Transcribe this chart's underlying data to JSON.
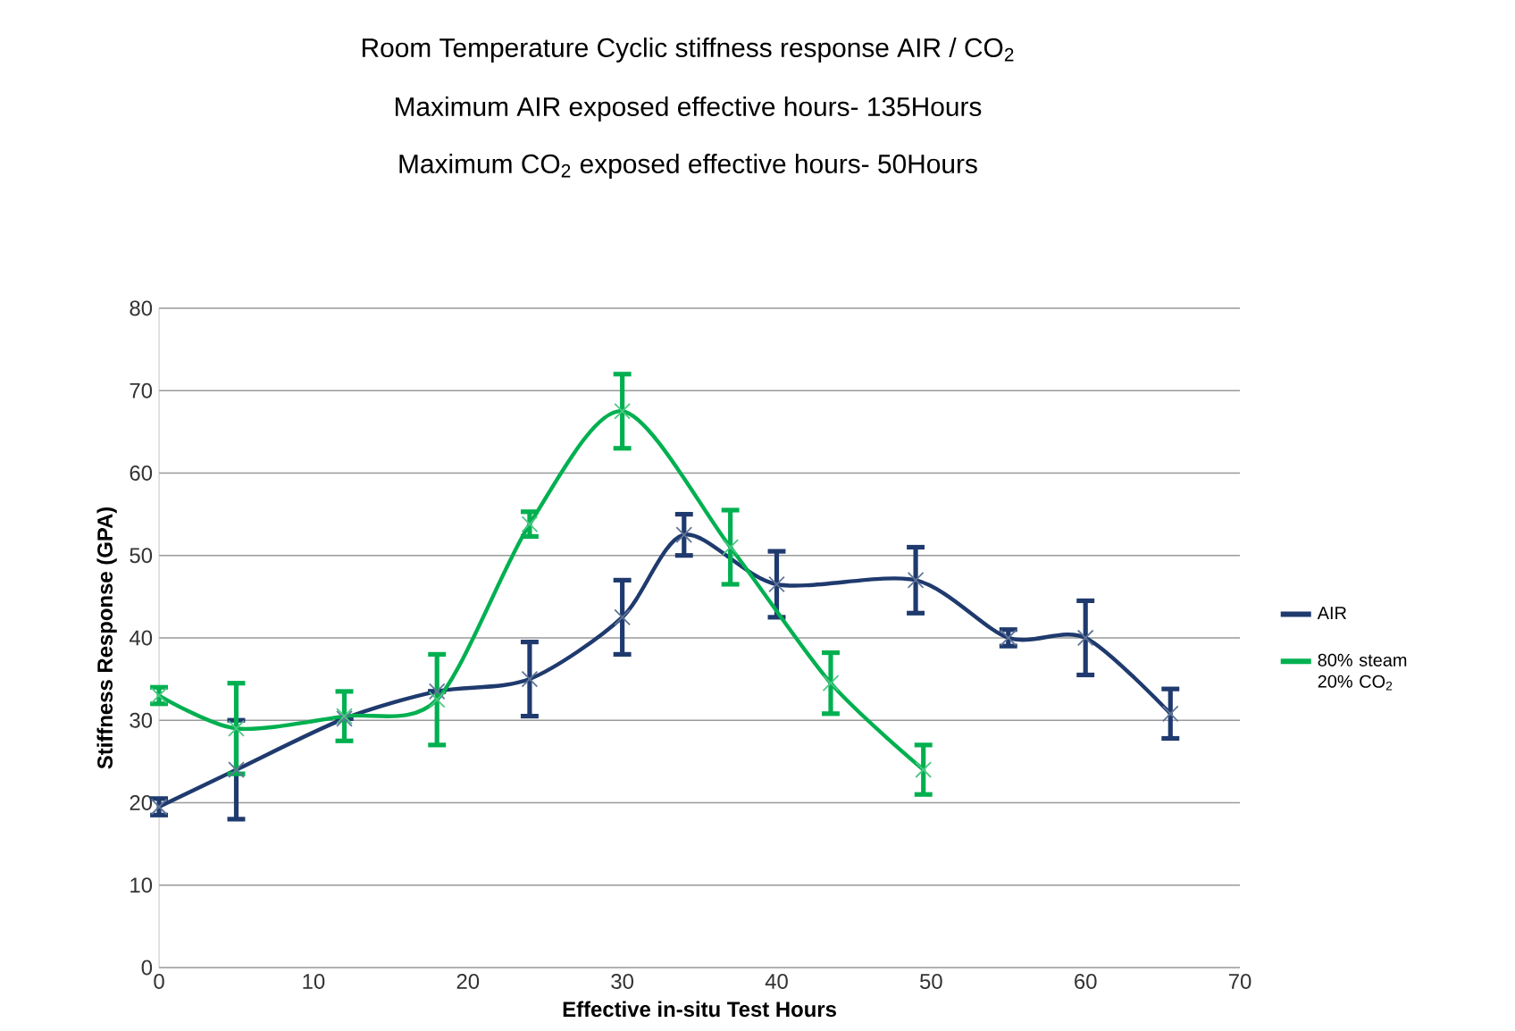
{
  "chart_data": {
    "type": "line",
    "title": "Room Temperature Cyclic stiffness response AIR / CO$_{2}$",
    "subtitle": "Maximum AIR exposed effective hours- 135Hours",
    "annotations": [
      "Maximum CO$_{2}$ exposed effective hours- 50Hours"
    ],
    "xlabel": "Effective in-situ Test Hours",
    "ylabel": "Stiffness Response  (GPA)",
    "xlim": [
      0,
      70
    ],
    "xticks": [
      0,
      10,
      20,
      30,
      40,
      50,
      60,
      70
    ],
    "ylim": [
      0,
      80
    ],
    "yticks": [
      0,
      10,
      20,
      30,
      40,
      50,
      60,
      70,
      80
    ],
    "grid": "y",
    "legend": "right",
    "marker": "cross",
    "line_style": "solid",
    "series": [
      {
        "name": "AIR",
        "color": "#1f3a6e",
        "x": [
          0,
          5,
          12,
          18,
          24,
          30,
          34,
          40,
          49,
          55,
          60,
          65.5
        ],
        "values": [
          19.5,
          24,
          30.2,
          33.5,
          35,
          42.5,
          52.5,
          46.5,
          47,
          40,
          40,
          30.8
        ],
        "errors": [
          1,
          6,
          null,
          null,
          4.5,
          4.5,
          2.5,
          4,
          4,
          1,
          4.5,
          3
        ]
      },
      {
        "name": "80% steam 20% CO$_{2}$",
        "color": "#00b050",
        "x": [
          0,
          5,
          12,
          18,
          24,
          30,
          37,
          43.5,
          49.5
        ],
        "values": [
          33,
          29,
          30.5,
          32.5,
          53.8,
          67.5,
          51,
          34.5,
          24
        ],
        "errors": [
          1,
          5.5,
          3,
          5.5,
          1.5,
          4.5,
          4.5,
          3.7,
          3
        ]
      }
    ]
  }
}
